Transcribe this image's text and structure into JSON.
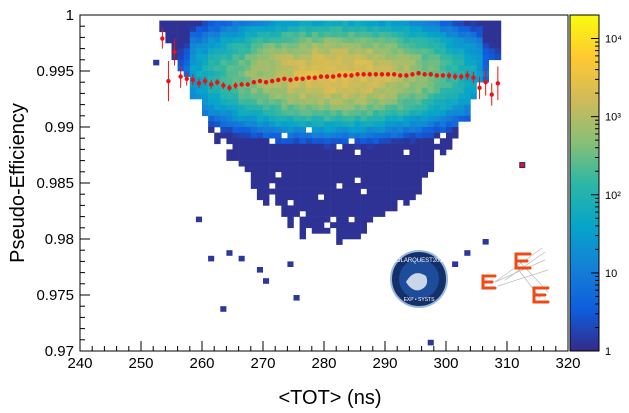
{
  "chart_data": {
    "type": "heatmap",
    "title": "",
    "xlabel": "<TOT> (ns)",
    "ylabel": "Pseudo-Efficiency",
    "xlim": [
      240,
      320
    ],
    "ylim": [
      0.97,
      1.0
    ],
    "x_ticks": [
      240,
      250,
      260,
      270,
      280,
      290,
      300,
      310,
      320
    ],
    "x_tick_labels": [
      "240",
      "250",
      "260",
      "270",
      "280",
      "290",
      "300",
      "310",
      "320"
    ],
    "y_ticks": [
      0.97,
      0.975,
      0.98,
      0.985,
      0.99,
      0.995,
      1.0
    ],
    "y_tick_labels": [
      "0.97",
      "0.975",
      "0.98",
      "0.985",
      "0.99",
      "0.995",
      "1"
    ],
    "colorbar": {
      "scale": "log",
      "range": [
        1,
        20000
      ],
      "tick_values": [
        1,
        10,
        100,
        1000,
        10000
      ],
      "tick_labels": [
        "1",
        "10",
        "10²",
        "10³",
        "10⁴"
      ]
    },
    "profile": {
      "marker_color": "#ee1111",
      "x": [
        253.5,
        254.5,
        255.5,
        256.5,
        257.5,
        258.5,
        259.5,
        260.5,
        261.5,
        262.5,
        263.5,
        264.5,
        265.5,
        266.5,
        267.5,
        268.5,
        269.5,
        270.5,
        271.5,
        272.5,
        273.5,
        274.5,
        275.5,
        276.5,
        277.5,
        278.5,
        279.5,
        280.5,
        281.5,
        282.5,
        283.5,
        284.5,
        285.5,
        286.5,
        287.5,
        288.5,
        289.5,
        290.5,
        291.5,
        292.5,
        293.5,
        294.5,
        295.5,
        296.5,
        297.5,
        298.5,
        299.5,
        300.5,
        301.5,
        302.5,
        303.5,
        304.5,
        305.5,
        306.5,
        307.5,
        308.5
      ],
      "y": [
        0.9979,
        0.9941,
        0.9967,
        0.9945,
        0.9943,
        0.9942,
        0.9939,
        0.9941,
        0.9938,
        0.994,
        0.9937,
        0.9935,
        0.9937,
        0.9938,
        0.9938,
        0.994,
        0.9941,
        0.994,
        0.9941,
        0.9942,
        0.9943,
        0.9942,
        0.9943,
        0.9943,
        0.9944,
        0.9944,
        0.9945,
        0.9945,
        0.9945,
        0.9946,
        0.9946,
        0.9946,
        0.9947,
        0.9947,
        0.9947,
        0.9947,
        0.9947,
        0.9947,
        0.9947,
        0.9946,
        0.9946,
        0.9947,
        0.9948,
        0.9947,
        0.9947,
        0.9946,
        0.9946,
        0.9946,
        0.9945,
        0.9945,
        0.9946,
        0.9944,
        0.9935,
        0.994,
        0.9929,
        0.9939
      ],
      "err": [
        0.0009,
        0.0018,
        0.0012,
        0.001,
        0.0006,
        0.0005,
        0.0004,
        0.0004,
        0.0004,
        0.0003,
        0.0003,
        0.0003,
        0.0003,
        0.0002,
        0.0002,
        0.0002,
        0.0002,
        0.0002,
        0.0002,
        0.0002,
        0.0002,
        0.0002,
        0.0002,
        0.0002,
        0.0002,
        0.0002,
        0.0002,
        0.0002,
        0.0002,
        0.0002,
        0.0002,
        0.0002,
        0.0002,
        0.0002,
        0.0002,
        0.0002,
        0.0002,
        0.0002,
        0.0002,
        0.0002,
        0.0002,
        0.0002,
        0.0002,
        0.0002,
        0.0002,
        0.0002,
        0.0002,
        0.0003,
        0.0003,
        0.0003,
        0.0004,
        0.0005,
        0.001,
        0.0012,
        0.001,
        0.0015
      ]
    },
    "outlier_points": [
      {
        "x": 312.5,
        "y": 0.9866
      }
    ],
    "logos": {
      "polar_patch_text": "POLARQUEST2018",
      "polar_patch_subtext": "EXP • SYSTS"
    }
  }
}
